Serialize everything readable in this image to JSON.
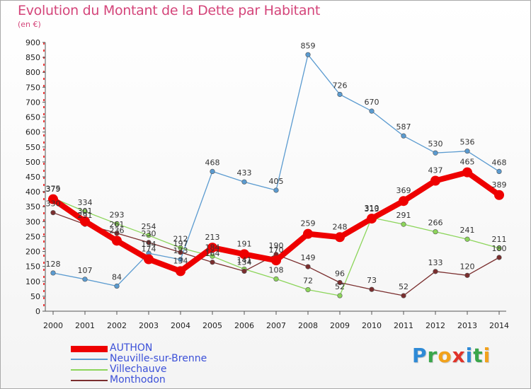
{
  "title": "Evolution du Montant de la Dette par Habitant",
  "subtitle": "(en €)",
  "logo": {
    "text": "Proxiti",
    "letter_colors": [
      "#2e8ad6",
      "#3aa64a",
      "#f2a21b",
      "#e0332a",
      "#2e8ad6",
      "#3aa64a",
      "#f2a21b"
    ]
  },
  "chart_data": {
    "type": "line",
    "title": "Evolution du Montant de la Dette par Habitant",
    "subtitle": "(en €)",
    "xlabel": "",
    "ylabel": "",
    "x": [
      "2000",
      "2001",
      "2002",
      "2003",
      "2004",
      "2005",
      "2006",
      "2007",
      "2008",
      "2009",
      "2010",
      "2011",
      "2012",
      "2013",
      "2014"
    ],
    "ylim": [
      0,
      900
    ],
    "yticks": [
      "0",
      "50",
      "100",
      "150",
      "200",
      "250",
      "300",
      "350",
      "400",
      "450",
      "500",
      "550",
      "600",
      "650",
      "700",
      "750",
      "800",
      "850",
      "900"
    ],
    "grid": false,
    "legend": "bottom-left",
    "series": [
      {
        "name": "AUTHON",
        "color": "#ee0000",
        "values": [
          375,
          301,
          236,
          174,
          134,
          213,
          191,
          170,
          259,
          248,
          310,
          369,
          437,
          465,
          389
        ]
      },
      {
        "name": "Neuville-sur-Brenne",
        "color": "#5b9bd0",
        "values": [
          128,
          107,
          84,
          194,
          173,
          468,
          433,
          405,
          859,
          726,
          670,
          587,
          530,
          536,
          468
        ]
      },
      {
        "name": "Villechauve",
        "color": "#8cd55a",
        "values": [
          379,
          334,
          293,
          254,
          212,
          184,
          141,
          108,
          72,
          52,
          313,
          291,
          266,
          241,
          211
        ]
      },
      {
        "name": "Monthodon",
        "color": "#7a2e2e",
        "values": [
          330,
          291,
          261,
          230,
          197,
          164,
          134,
          190,
          149,
          96,
          73,
          52,
          133,
          120,
          180
        ]
      }
    ]
  }
}
